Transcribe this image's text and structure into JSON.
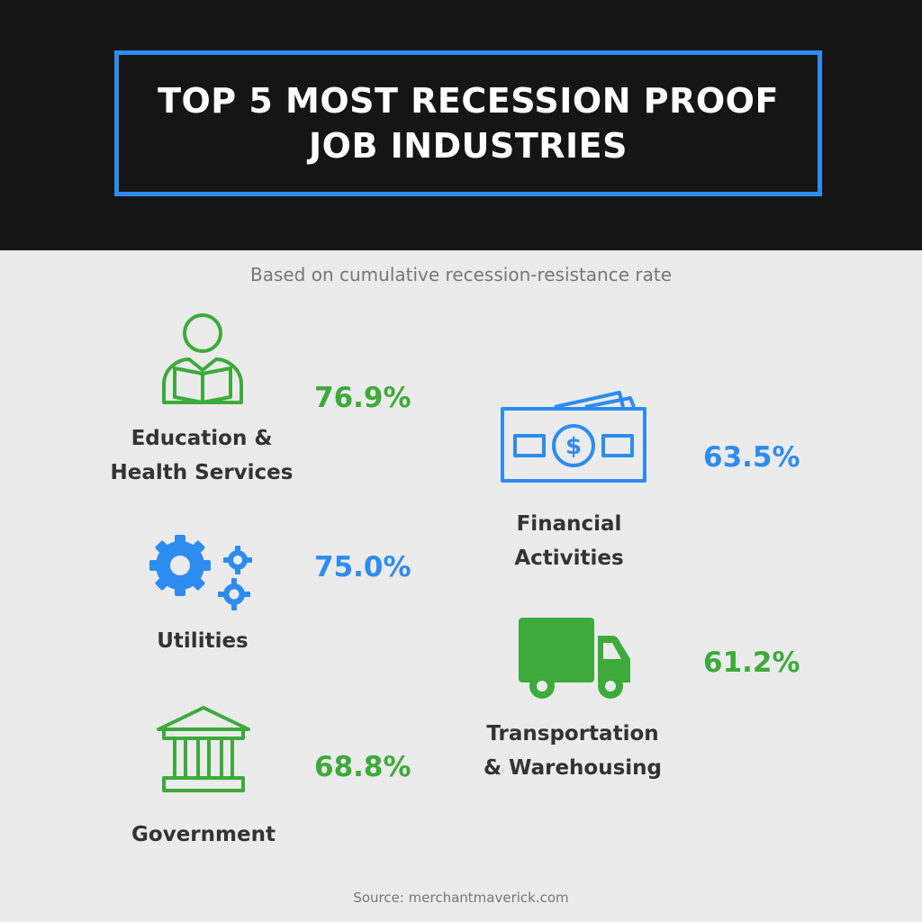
{
  "header": {
    "title_line1": "TOP 5 MOST RECESSION PROOF",
    "title_line2": "JOB INDUSTRIES",
    "border_color": "#2d8cf0"
  },
  "subtitle": "Based on cumulative recession-resistance rate",
  "industries": [
    {
      "label_line1": "Education &",
      "label_line2": "Health Services",
      "rate": "76.9%",
      "icon": "person-reading-icon",
      "color": "#3daa3b"
    },
    {
      "label_line1": "Utilities",
      "label_line2": "",
      "rate": "75.0%",
      "icon": "gears-icon",
      "color": "#2d8cf0"
    },
    {
      "label_line1": "Government",
      "label_line2": "",
      "rate": "68.8%",
      "icon": "government-building-icon",
      "color": "#3daa3b"
    },
    {
      "label_line1": "Financial",
      "label_line2": "Activities",
      "rate": "63.5%",
      "icon": "money-bill-icon",
      "color": "#2d8cf0"
    },
    {
      "label_line1": "Transportation",
      "label_line2": "& Warehousing",
      "rate": "61.2%",
      "icon": "truck-icon",
      "color": "#3daa3b"
    }
  ],
  "source": "Source: merchantmaverick.com"
}
